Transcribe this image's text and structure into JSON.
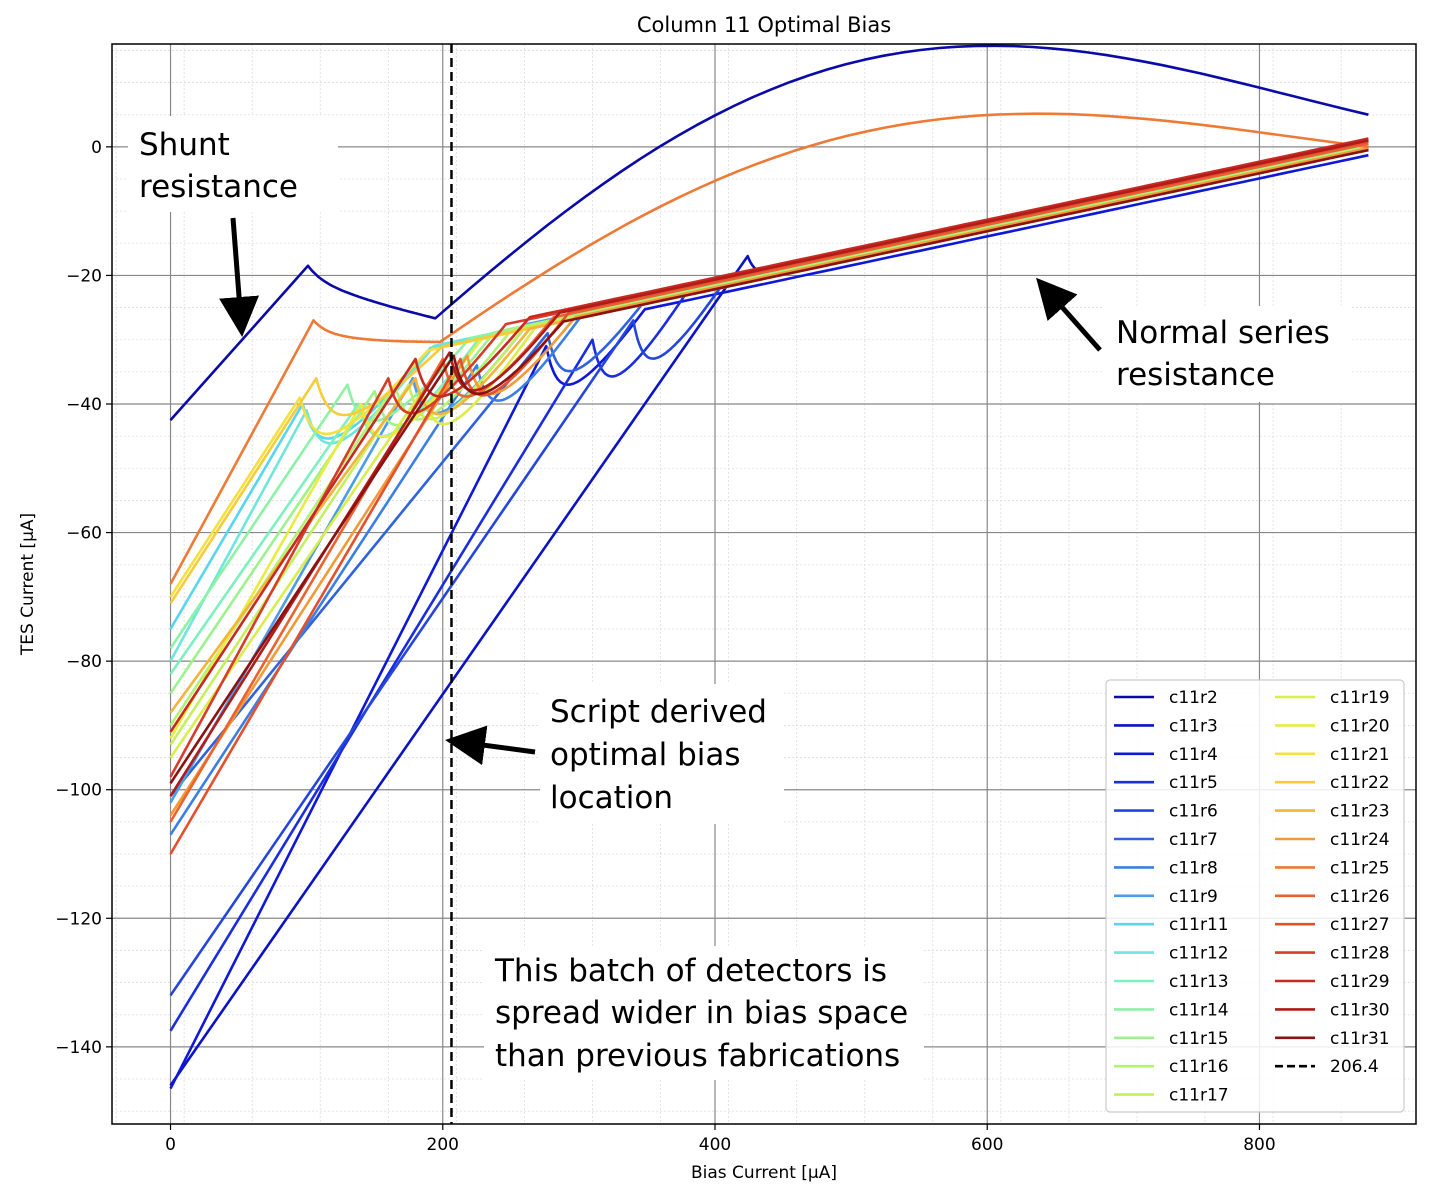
{
  "chart_data": {
    "type": "line",
    "title": "Column 11 Optimal Bias",
    "xlabel": "Bias Current [μA]",
    "ylabel": "TES Current [μA]",
    "xlim": [
      -43,
      915
    ],
    "ylim": [
      -152,
      16
    ],
    "xticks": [
      0,
      200,
      400,
      600,
      800
    ],
    "yticks": [
      0,
      -20,
      -40,
      -60,
      -80,
      -100,
      -120,
      -140
    ],
    "grid": true,
    "legend_position": "lower-right",
    "x_max": 880,
    "vline": {
      "label": "206.4",
      "x": 206.4
    },
    "series": [
      {
        "name": "c11r2",
        "color": "#0a0aa8",
        "y0": -42.5,
        "xpk": 101,
        "ypk": -18.5,
        "nslope": 0.0462,
        "y_end": 5,
        "arc": 30
      },
      {
        "name": "c11r3",
        "color": "#0b13c4",
        "y0": -146.0,
        "xpk": 424,
        "ypk": -17.0,
        "nslope": 0.0449,
        "y_end": 0,
        "arc": 0
      },
      {
        "name": "c11r4",
        "color": "#0f18d8",
        "y0": -146.5,
        "xpk": 276,
        "ypk": -31.0,
        "nslope": 0.0451,
        "y_end": -1.3,
        "arc": 0
      },
      {
        "name": "c11r5",
        "color": "#1a2ee0",
        "y0": -137.5,
        "xpk": 310,
        "ypk": -30.0,
        "nslope": 0.0451,
        "y_end": -0.3,
        "arc": 0
      },
      {
        "name": "c11r6",
        "color": "#2446dc",
        "y0": -132.0,
        "xpk": 340,
        "ypk": -27.0,
        "nslope": 0.0451,
        "y_end": -0.2,
        "arc": 0
      },
      {
        "name": "c11r7",
        "color": "#2e62e0",
        "y0": -101.0,
        "xpk": 277,
        "ypk": -29.0,
        "nslope": 0.0451,
        "y_end": 0.2,
        "arc": 0
      },
      {
        "name": "c11r8",
        "color": "#3b7fe6",
        "y0": -107.0,
        "xpk": 225,
        "ypk": -34.0,
        "nslope": 0.0451,
        "y_end": 0.2,
        "arc": 0
      },
      {
        "name": "c11r9",
        "color": "#4a9cec",
        "y0": -102.0,
        "xpk": 178,
        "ypk": -36.0,
        "nslope": 0.0451,
        "y_end": 0.3,
        "arc": 0
      },
      {
        "name": "c11r11",
        "color": "#56d6f0",
        "y0": -75.0,
        "xpk": 97,
        "ypk": -40.0,
        "nslope": 0.0451,
        "y_end": -0.2,
        "arc": 0
      },
      {
        "name": "c11r12",
        "color": "#6ee6dc",
        "y0": -80.0,
        "xpk": 100,
        "ypk": -41.0,
        "nslope": 0.0451,
        "y_end": 0,
        "arc": 0
      },
      {
        "name": "c11r13",
        "color": "#7df0c0",
        "y0": -82.0,
        "xpk": 138,
        "ypk": -40.0,
        "nslope": 0.0451,
        "y_end": -0.3,
        "arc": 0
      },
      {
        "name": "c11r14",
        "color": "#8cf2a6",
        "y0": -78.0,
        "xpk": 130,
        "ypk": -37.0,
        "nslope": 0.0451,
        "y_end": 0,
        "arc": 0
      },
      {
        "name": "c11r15",
        "color": "#9cf28c",
        "y0": -85.0,
        "xpk": 150,
        "ypk": -38.0,
        "nslope": 0.0451,
        "y_end": 0.1,
        "arc": 0
      },
      {
        "name": "c11r16",
        "color": "#b2f274",
        "y0": -90.0,
        "xpk": 165,
        "ypk": -37.0,
        "nslope": 0.0451,
        "y_end": 0,
        "arc": 0
      },
      {
        "name": "c11r17",
        "color": "#c4f05e",
        "y0": -93.0,
        "xpk": 175,
        "ypk": -37.0,
        "nslope": 0.0451,
        "y_end": -0.2,
        "arc": 0
      },
      {
        "name": "c11r19",
        "color": "#d8ee4a",
        "y0": -95.0,
        "xpk": 185,
        "ypk": -38.0,
        "nslope": 0.0451,
        "y_end": -0.4,
        "arc": 0
      },
      {
        "name": "c11r20",
        "color": "#e8ec40",
        "y0": -92.0,
        "xpk": 140,
        "ypk": -40.0,
        "nslope": 0.0451,
        "y_end": -0.5,
        "arc": 0
      },
      {
        "name": "c11r21",
        "color": "#f4e040",
        "y0": -70.0,
        "xpk": 95,
        "ypk": -39.0,
        "nslope": 0.0451,
        "y_end": -0.5,
        "arc": 0
      },
      {
        "name": "c11r22",
        "color": "#f6cc3a",
        "y0": -71.0,
        "xpk": 107,
        "ypk": -36.0,
        "nslope": 0.0451,
        "y_end": -0.4,
        "arc": 0
      },
      {
        "name": "c11r23",
        "color": "#f4b43a",
        "y0": -88.0,
        "xpk": 180,
        "ypk": -36.0,
        "nslope": 0.0451,
        "y_end": -0.5,
        "arc": 0
      },
      {
        "name": "c11r24",
        "color": "#f29a38",
        "y0": -104.0,
        "xpk": 218,
        "ypk": -32.5,
        "nslope": 0.0451,
        "y_end": -0.2,
        "arc": 0
      },
      {
        "name": "c11r25",
        "color": "#ee7a36",
        "y0": -68.0,
        "xpk": 105,
        "ypk": -27.0,
        "nslope": 0.0445,
        "y_end": 0,
        "arc": 22
      },
      {
        "name": "c11r26",
        "color": "#ea6230",
        "y0": -105.0,
        "xpk": 200,
        "ypk": -33.0,
        "nslope": 0.0451,
        "y_end": 0.5,
        "arc": 0
      },
      {
        "name": "c11r27",
        "color": "#e4502c",
        "y0": -110.0,
        "xpk": 213,
        "ypk": -33.0,
        "nslope": 0.0451,
        "y_end": 0.8,
        "arc": 0
      },
      {
        "name": "c11r28",
        "color": "#d83c28",
        "y0": -98.0,
        "xpk": 160,
        "ypk": -36.0,
        "nslope": 0.0451,
        "y_end": 1,
        "arc": 0
      },
      {
        "name": "c11r29",
        "color": "#c82a22",
        "y0": -91.0,
        "xpk": 180,
        "ypk": -33.0,
        "nslope": 0.0451,
        "y_end": 1.3,
        "arc": 0
      },
      {
        "name": "c11r30",
        "color": "#b01c1a",
        "y0": -101.0,
        "xpk": 205,
        "ypk": -32.0,
        "nslope": 0.0451,
        "y_end": 1,
        "arc": 0
      },
      {
        "name": "c11r31",
        "color": "#8a1212",
        "y0": -99.0,
        "xpk": 208,
        "ypk": -32.5,
        "nslope": 0.0451,
        "y_end": -0.5,
        "arc": 0
      }
    ]
  },
  "annotations": {
    "shunt": [
      "Shunt",
      "resistance"
    ],
    "normal": [
      "Normal series",
      "resistance"
    ],
    "script": [
      "Script derived",
      "optimal bias",
      "location"
    ],
    "batch": [
      "This batch of detectors is",
      "spread wider in bias space",
      "than previous fabrications"
    ]
  }
}
